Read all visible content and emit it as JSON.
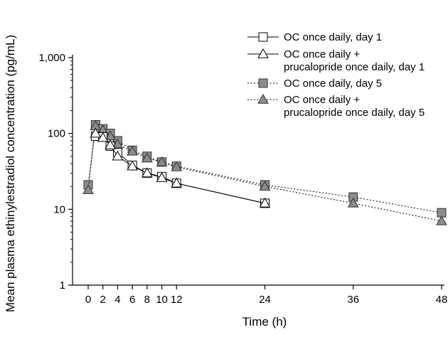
{
  "chart_data": {
    "type": "line",
    "title": "",
    "xlabel": "Time (h)",
    "ylabel": "Mean plasma ethinylestradiol concentration (pg/mL)",
    "yscale": "log",
    "ylim": [
      1,
      1000
    ],
    "xlim": [
      0,
      48
    ],
    "x_ticks": [
      0,
      2,
      4,
      6,
      8,
      10,
      12,
      24,
      36,
      48
    ],
    "x_tick_labels": [
      "0",
      "2",
      "4",
      "6",
      "8",
      "10",
      "12",
      "24",
      "36",
      "48"
    ],
    "y_ticks": [
      1,
      10,
      100,
      1000
    ],
    "y_tick_labels": [
      "1",
      "10",
      "100",
      "1,000"
    ],
    "grid": false,
    "legend_position": "top-right",
    "series": [
      {
        "name": "OC once daily, day 1",
        "marker": "open-square",
        "line": "solid",
        "color": "#000000",
        "x": [
          1,
          2,
          3,
          4,
          6,
          8,
          10,
          12,
          24
        ],
        "y": [
          92,
          90,
          68,
          56,
          38,
          30,
          27,
          22,
          12
        ]
      },
      {
        "name": "OC once daily +\nprucalopride once daily, day 1",
        "marker": "open-triangle",
        "line": "solid",
        "color": "#000000",
        "x": [
          1,
          2,
          3,
          4,
          6,
          8,
          10,
          12,
          24
        ],
        "y": [
          100,
          88,
          70,
          50,
          37,
          30,
          26,
          22,
          12
        ]
      },
      {
        "name": "OC once daily, day 5",
        "marker": "filled-square",
        "line": "dotted",
        "color": "#999999",
        "x": [
          0,
          1,
          2,
          3,
          4,
          6,
          8,
          10,
          12,
          24,
          36,
          48
        ],
        "y": [
          21,
          130,
          115,
          100,
          80,
          60,
          50,
          42,
          37,
          21,
          14.5,
          9
        ]
      },
      {
        "name": "OC once daily +\nprucalopride once daily, day 5",
        "marker": "filled-triangle",
        "line": "dotted",
        "color": "#999999",
        "x": [
          0,
          1,
          2,
          3,
          4,
          6,
          8,
          10,
          12,
          24,
          36,
          48
        ],
        "y": [
          18,
          125,
          110,
          92,
          72,
          58,
          47,
          42,
          36,
          20,
          12,
          7
        ]
      }
    ]
  }
}
